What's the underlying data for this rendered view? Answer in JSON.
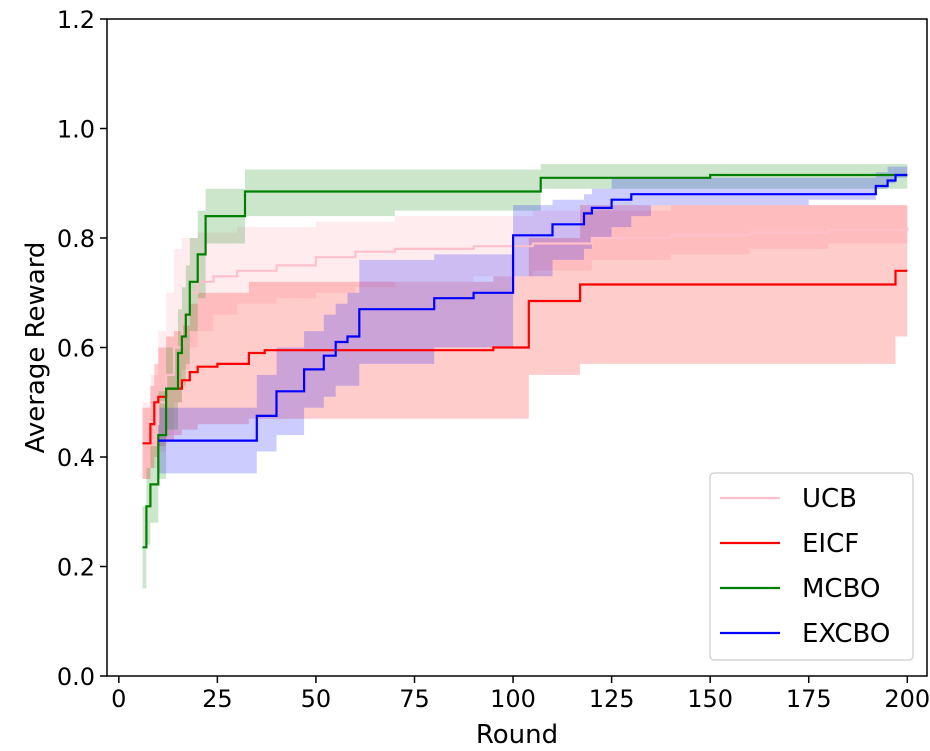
{
  "chart_data": {
    "type": "line",
    "title": "",
    "xlabel": "Round",
    "ylabel": "Average Reward",
    "xlim": [
      -3,
      205
    ],
    "ylim": [
      0.0,
      1.2
    ],
    "xticks": [
      0,
      25,
      50,
      75,
      100,
      125,
      150,
      175,
      200
    ],
    "yticks": [
      0.0,
      0.2,
      0.4,
      0.6,
      0.8,
      1.0,
      1.2
    ],
    "xtick_labels": [
      "0",
      "25",
      "50",
      "75",
      "100",
      "125",
      "150",
      "175",
      "200"
    ],
    "ytick_labels": [
      "0.0",
      "0.2",
      "0.4",
      "0.6",
      "0.8",
      "1.0",
      "1.2"
    ],
    "grid": false,
    "legend_position": "lower-right",
    "series": [
      {
        "name": "UCB",
        "color": "#ffc0cb",
        "band_opacity": 0.3,
        "x": [
          6,
          8,
          10,
          12,
          14,
          16,
          18,
          20,
          24,
          30,
          40,
          50,
          60,
          70,
          90,
          105,
          120,
          140,
          160,
          180,
          200
        ],
        "y": [
          0.43,
          0.46,
          0.5,
          0.55,
          0.6,
          0.66,
          0.7,
          0.72,
          0.73,
          0.74,
          0.75,
          0.765,
          0.775,
          0.78,
          0.785,
          0.79,
          0.8,
          0.805,
          0.81,
          0.815,
          0.82
        ],
        "lower": [
          0.36,
          0.38,
          0.41,
          0.44,
          0.5,
          0.56,
          0.6,
          0.63,
          0.66,
          0.68,
          0.69,
          0.7,
          0.71,
          0.72,
          0.73,
          0.74,
          0.76,
          0.77,
          0.78,
          0.79,
          0.79
        ],
        "upper": [
          0.5,
          0.55,
          0.63,
          0.7,
          0.78,
          0.8,
          0.8,
          0.81,
          0.81,
          0.82,
          0.82,
          0.83,
          0.83,
          0.84,
          0.84,
          0.85,
          0.85,
          0.86,
          0.86,
          0.86,
          0.87
        ]
      },
      {
        "name": "EICF",
        "color": "#ff0000",
        "band_opacity": 0.2,
        "x": [
          6,
          8,
          9,
          10,
          12,
          14,
          16,
          18,
          20,
          25,
          33,
          37,
          50,
          60,
          80,
          95,
          100,
          104,
          110,
          117,
          130,
          150,
          175,
          197,
          200
        ],
        "y": [
          0.425,
          0.46,
          0.5,
          0.51,
          0.525,
          0.525,
          0.54,
          0.555,
          0.565,
          0.57,
          0.59,
          0.595,
          0.595,
          0.595,
          0.595,
          0.6,
          0.6,
          0.685,
          0.685,
          0.715,
          0.715,
          0.715,
          0.715,
          0.74,
          0.74
        ],
        "lower": [
          0.36,
          0.38,
          0.4,
          0.42,
          0.43,
          0.44,
          0.45,
          0.45,
          0.46,
          0.46,
          0.47,
          0.47,
          0.47,
          0.47,
          0.47,
          0.47,
          0.47,
          0.55,
          0.55,
          0.57,
          0.57,
          0.57,
          0.57,
          0.62,
          0.62
        ],
        "upper": [
          0.49,
          0.53,
          0.57,
          0.6,
          0.62,
          0.63,
          0.64,
          0.68,
          0.7,
          0.7,
          0.72,
          0.72,
          0.72,
          0.72,
          0.72,
          0.73,
          0.73,
          0.8,
          0.8,
          0.86,
          0.86,
          0.86,
          0.86,
          0.86,
          0.86
        ]
      },
      {
        "name": "MCBO",
        "color": "#008000",
        "band_opacity": 0.2,
        "x": [
          6,
          7,
          8,
          10,
          12,
          15,
          16,
          17,
          18,
          20,
          22,
          30,
          32,
          50,
          70,
          90,
          107,
          110,
          130,
          150,
          175,
          200
        ],
        "y": [
          0.235,
          0.31,
          0.35,
          0.44,
          0.525,
          0.59,
          0.62,
          0.66,
          0.72,
          0.77,
          0.84,
          0.84,
          0.885,
          0.885,
          0.885,
          0.885,
          0.91,
          0.91,
          0.91,
          0.915,
          0.915,
          0.915
        ],
        "lower": [
          0.16,
          0.24,
          0.28,
          0.36,
          0.45,
          0.5,
          0.53,
          0.57,
          0.63,
          0.69,
          0.79,
          0.79,
          0.84,
          0.84,
          0.85,
          0.85,
          0.89,
          0.89,
          0.89,
          0.89,
          0.89,
          0.89
        ],
        "upper": [
          0.31,
          0.38,
          0.42,
          0.52,
          0.6,
          0.67,
          0.71,
          0.75,
          0.8,
          0.85,
          0.89,
          0.89,
          0.925,
          0.925,
          0.925,
          0.925,
          0.935,
          0.935,
          0.935,
          0.935,
          0.935,
          0.935
        ]
      },
      {
        "name": "EXCBO",
        "color": "#0000ff",
        "band_opacity": 0.2,
        "x": [
          10,
          32,
          35,
          40,
          47,
          52,
          55,
          58,
          61,
          70,
          80,
          90,
          99,
          100,
          105,
          110,
          115,
          118,
          120,
          125,
          130,
          135,
          150,
          175,
          192,
          195,
          197,
          200
        ],
        "y": [
          0.43,
          0.43,
          0.475,
          0.52,
          0.56,
          0.585,
          0.61,
          0.62,
          0.67,
          0.67,
          0.69,
          0.7,
          0.7,
          0.805,
          0.805,
          0.825,
          0.825,
          0.845,
          0.855,
          0.87,
          0.88,
          0.88,
          0.88,
          0.88,
          0.895,
          0.905,
          0.915,
          0.915
        ],
        "lower": [
          0.37,
          0.37,
          0.41,
          0.44,
          0.49,
          0.51,
          0.53,
          0.53,
          0.57,
          0.57,
          0.6,
          0.6,
          0.6,
          0.73,
          0.73,
          0.76,
          0.76,
          0.78,
          0.8,
          0.82,
          0.84,
          0.86,
          0.86,
          0.87,
          0.89,
          0.9,
          0.91,
          0.91
        ],
        "upper": [
          0.49,
          0.49,
          0.55,
          0.6,
          0.63,
          0.66,
          0.68,
          0.7,
          0.76,
          0.76,
          0.77,
          0.77,
          0.77,
          0.86,
          0.86,
          0.87,
          0.87,
          0.88,
          0.89,
          0.91,
          0.91,
          0.91,
          0.91,
          0.91,
          0.92,
          0.93,
          0.93,
          0.93
        ]
      }
    ]
  }
}
